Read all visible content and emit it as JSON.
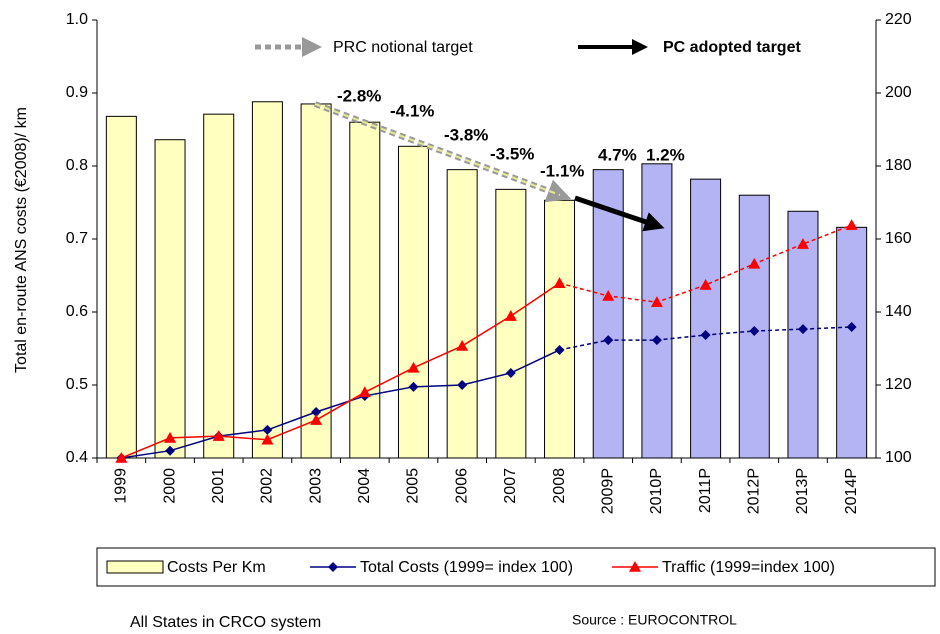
{
  "chart_data": {
    "type": "bar_line",
    "y_label": "Total en-route ANS costs (€2008)/ km",
    "categories": [
      "1999",
      "2000",
      "2001",
      "2002",
      "2003",
      "2004",
      "2005",
      "2006",
      "2007",
      "2008",
      "2009P",
      "2010P",
      "2011P",
      "2012P",
      "2013P",
      "2014P"
    ],
    "ylim": [
      0.4,
      1.0
    ],
    "yticks": [
      0.4,
      0.5,
      0.6,
      0.7,
      0.8,
      0.9,
      {
        "value": 1,
        "label": "1.0"
      }
    ],
    "y2lim": [
      100,
      220
    ],
    "y2ticks": [
      100,
      120,
      140,
      160,
      180,
      200,
      220
    ],
    "dashed_from_index": 9,
    "series": [
      {
        "name": "Costs Per Km",
        "type": "bar",
        "colors": [
          "#ffffc0",
          "#ffffc0",
          "#ffffc0",
          "#ffffc0",
          "#ffffc0",
          "#ffffc0",
          "#ffffc0",
          "#ffffc0",
          "#ffffc0",
          "#ffffc0",
          "#b4b4f4",
          "#b4b4f4",
          "#b4b4f4",
          "#b4b4f4",
          "#b4b4f4",
          "#b4b4f4"
        ],
        "values": [
          0.868,
          0.836,
          0.871,
          0.888,
          0.885,
          0.86,
          0.827,
          0.795,
          0.768,
          0.753,
          0.795,
          0.803,
          0.782,
          0.76,
          0.738,
          0.716
        ]
      },
      {
        "name": "Total Costs (1999= index 100)",
        "type": "line",
        "axis": "y2",
        "color": "#000080",
        "marker": "diamond",
        "values": [
          100,
          102,
          106,
          107.7,
          112.6,
          117,
          119.5,
          120,
          123.3,
          129.6,
          132.3,
          132.3,
          133.7,
          134.8,
          135.3,
          135.9
        ]
      },
      {
        "name": "Traffic (1999=index 100)",
        "type": "line",
        "axis": "y2",
        "color": "#ff0000",
        "marker": "triangle",
        "values": [
          100,
          105.5,
          106,
          105,
          110.4,
          118,
          124.7,
          130.7,
          138.9,
          147.9,
          144.4,
          142.7,
          147.4,
          153.2,
          158.6,
          163.8
        ]
      }
    ],
    "annotations": [
      "-2.8%",
      "-4.1%",
      "-3.8%",
      "-3.5%",
      "-1.1%",
      "4.7%",
      "1.2%"
    ],
    "targets": [
      "PRC notional target",
      "PC adopted target"
    ],
    "footer_left": "All States in CRCO system",
    "footer_right": "Source : EUROCONTROL"
  }
}
